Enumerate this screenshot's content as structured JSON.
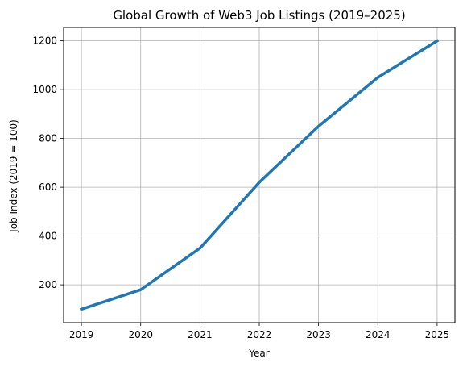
{
  "chart_data": {
    "type": "line",
    "title": "Global Growth of Web3 Job Listings (2019–2025)",
    "xlabel": "Year",
    "ylabel": "Job Index (2019 = 100)",
    "x": [
      2019,
      2020,
      2021,
      2022,
      2023,
      2024,
      2025
    ],
    "series": [
      {
        "values": [
          100,
          180,
          350,
          620,
          850,
          1050,
          1200
        ]
      }
    ],
    "x_ticks": [
      "2019",
      "2020",
      "2021",
      "2022",
      "2023",
      "2024",
      "2025"
    ],
    "y_ticks": [
      200,
      400,
      600,
      800,
      1000,
      1200
    ],
    "xlim": [
      2018.7,
      2025.3
    ],
    "ylim": [
      45,
      1255
    ],
    "grid": true,
    "line_color": "#1f77b4",
    "grid_color": "#b0b0b0"
  }
}
